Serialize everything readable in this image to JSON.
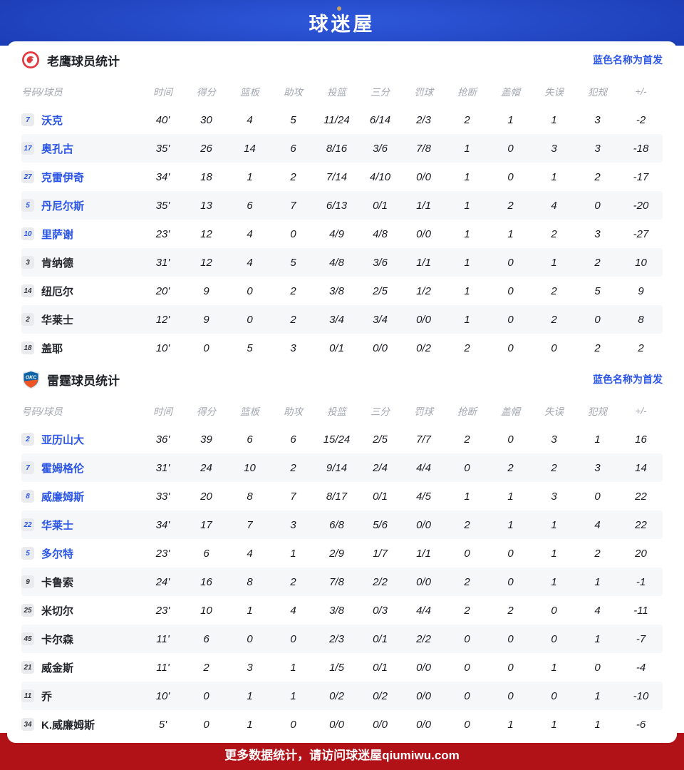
{
  "header": {
    "logo_text": "球迷屋"
  },
  "footer": {
    "text": "更多数据统计，请访问球迷屋qiumiwu.com"
  },
  "legend": "蓝色名称为首发",
  "columns": [
    "号码/球员",
    "时间",
    "得分",
    "篮板",
    "助攻",
    "投篮",
    "三分",
    "罚球",
    "抢断",
    "盖帽",
    "失误",
    "犯规",
    "+/-"
  ],
  "colors": {
    "banner_blue": "#1e40ba",
    "footer_red": "#b01218",
    "starter_blue": "#2b55e6",
    "zebra_gray": "#f6f7f9",
    "hawks_red": "#e03a3e",
    "thunder_blue": "#0c63a8",
    "thunder_orange": "#ee5523"
  },
  "tables": [
    {
      "title": "老鹰球员统计",
      "logo": "hawks-logo",
      "players": [
        {
          "num": "7",
          "name": "沃克",
          "starter": true,
          "stats": [
            "40'",
            "30",
            "4",
            "5",
            "11/24",
            "6/14",
            "2/3",
            "2",
            "1",
            "1",
            "3",
            "-2"
          ]
        },
        {
          "num": "17",
          "name": "奥孔古",
          "starter": true,
          "stats": [
            "35'",
            "26",
            "14",
            "6",
            "8/16",
            "3/6",
            "7/8",
            "1",
            "0",
            "3",
            "3",
            "-18"
          ]
        },
        {
          "num": "27",
          "name": "克雷伊奇",
          "starter": true,
          "stats": [
            "34'",
            "18",
            "1",
            "2",
            "7/14",
            "4/10",
            "0/0",
            "1",
            "0",
            "1",
            "2",
            "-17"
          ]
        },
        {
          "num": "5",
          "name": "丹尼尔斯",
          "starter": true,
          "stats": [
            "35'",
            "13",
            "6",
            "7",
            "6/13",
            "0/1",
            "1/1",
            "1",
            "2",
            "4",
            "0",
            "-20"
          ]
        },
        {
          "num": "10",
          "name": "里萨谢",
          "starter": true,
          "stats": [
            "23'",
            "12",
            "4",
            "0",
            "4/9",
            "4/8",
            "0/0",
            "1",
            "1",
            "2",
            "3",
            "-27"
          ]
        },
        {
          "num": "3",
          "name": "肯纳德",
          "starter": false,
          "stats": [
            "31'",
            "12",
            "4",
            "5",
            "4/8",
            "3/6",
            "1/1",
            "1",
            "0",
            "1",
            "2",
            "10"
          ]
        },
        {
          "num": "14",
          "name": "纽厄尔",
          "starter": false,
          "stats": [
            "20'",
            "9",
            "0",
            "2",
            "3/8",
            "2/5",
            "1/2",
            "1",
            "0",
            "2",
            "5",
            "9"
          ]
        },
        {
          "num": "2",
          "name": "华莱士",
          "starter": false,
          "stats": [
            "12'",
            "9",
            "0",
            "2",
            "3/4",
            "3/4",
            "0/0",
            "1",
            "0",
            "2",
            "0",
            "8"
          ]
        },
        {
          "num": "18",
          "name": "盖耶",
          "starter": false,
          "stats": [
            "10'",
            "0",
            "5",
            "3",
            "0/1",
            "0/0",
            "0/2",
            "2",
            "0",
            "0",
            "2",
            "2"
          ]
        }
      ]
    },
    {
      "title": "雷霆球员统计",
      "logo": "thunder-logo",
      "players": [
        {
          "num": "2",
          "name": "亚历山大",
          "starter": true,
          "stats": [
            "36'",
            "39",
            "6",
            "6",
            "15/24",
            "2/5",
            "7/7",
            "2",
            "0",
            "3",
            "1",
            "16"
          ]
        },
        {
          "num": "7",
          "name": "霍姆格伦",
          "starter": true,
          "stats": [
            "31'",
            "24",
            "10",
            "2",
            "9/14",
            "2/4",
            "4/4",
            "0",
            "2",
            "2",
            "3",
            "14"
          ]
        },
        {
          "num": "8",
          "name": "威廉姆斯",
          "starter": true,
          "stats": [
            "33'",
            "20",
            "8",
            "7",
            "8/17",
            "0/1",
            "4/5",
            "1",
            "1",
            "3",
            "0",
            "22"
          ]
        },
        {
          "num": "22",
          "name": "华莱士",
          "starter": true,
          "stats": [
            "34'",
            "17",
            "7",
            "3",
            "6/8",
            "5/6",
            "0/0",
            "2",
            "1",
            "1",
            "4",
            "22"
          ]
        },
        {
          "num": "5",
          "name": "多尔特",
          "starter": true,
          "stats": [
            "23'",
            "6",
            "4",
            "1",
            "2/9",
            "1/7",
            "1/1",
            "0",
            "0",
            "1",
            "2",
            "20"
          ]
        },
        {
          "num": "9",
          "name": "卡鲁索",
          "starter": false,
          "stats": [
            "24'",
            "16",
            "8",
            "2",
            "7/8",
            "2/2",
            "0/0",
            "2",
            "0",
            "1",
            "1",
            "-1"
          ]
        },
        {
          "num": "25",
          "name": "米切尔",
          "starter": false,
          "stats": [
            "23'",
            "10",
            "1",
            "4",
            "3/8",
            "0/3",
            "4/4",
            "2",
            "2",
            "0",
            "4",
            "-11"
          ]
        },
        {
          "num": "45",
          "name": "卡尔森",
          "starter": false,
          "stats": [
            "11'",
            "6",
            "0",
            "0",
            "2/3",
            "0/1",
            "2/2",
            "0",
            "0",
            "0",
            "1",
            "-7"
          ]
        },
        {
          "num": "21",
          "name": "威金斯",
          "starter": false,
          "stats": [
            "11'",
            "2",
            "3",
            "1",
            "1/5",
            "0/1",
            "0/0",
            "0",
            "0",
            "1",
            "0",
            "-4"
          ]
        },
        {
          "num": "11",
          "name": "乔",
          "starter": false,
          "stats": [
            "10'",
            "0",
            "1",
            "1",
            "0/2",
            "0/2",
            "0/0",
            "0",
            "0",
            "0",
            "1",
            "-10"
          ]
        },
        {
          "num": "34",
          "name": "K.威廉姆斯",
          "starter": false,
          "stats": [
            "5'",
            "0",
            "1",
            "0",
            "0/0",
            "0/0",
            "0/0",
            "0",
            "1",
            "1",
            "1",
            "-6"
          ]
        }
      ]
    }
  ]
}
